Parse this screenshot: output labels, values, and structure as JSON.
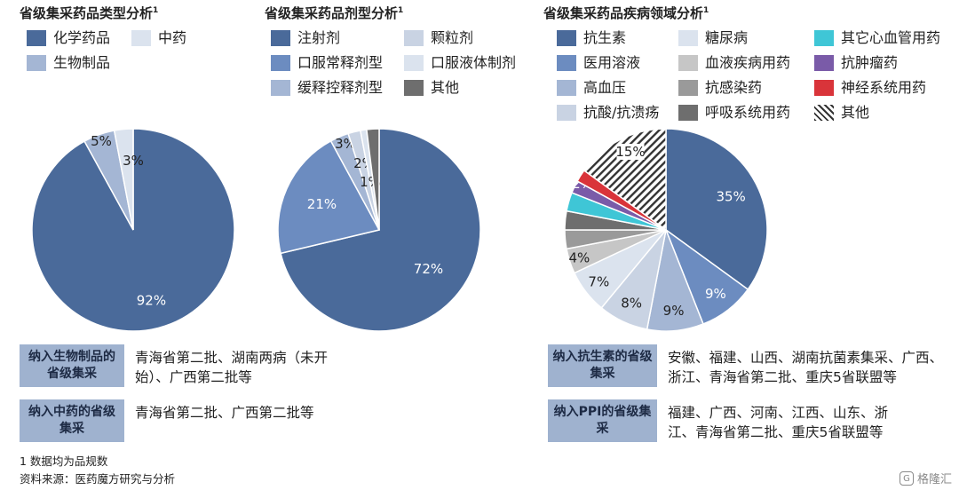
{
  "colors": {
    "c1": "#4a6a9a",
    "c2": "#6c8cc0",
    "c3": "#a4b6d4",
    "c4": "#c9d3e3",
    "c5": "#dbe3ee",
    "g1": "#c6c6c6",
    "g2": "#9a9a9a",
    "g3": "#6e6e6e",
    "teal": "#3fc6d6",
    "purple": "#7a5ba8",
    "red": "#d9343a"
  },
  "chart_data": [
    {
      "type": "pie",
      "title": "省级集采药品类型分析",
      "title_sup": "1",
      "legend_position": "top",
      "slices": [
        {
          "label": "化学药品",
          "value": 92,
          "display": "92%",
          "color": "#4a6a9a",
          "label_color": "#ffffff"
        },
        {
          "label": "生物制品",
          "value": 5,
          "display": "5%",
          "color": "#a4b6d4",
          "label_color": "#222222"
        },
        {
          "label": "中药",
          "value": 3,
          "display": "3%",
          "color": "#dbe3ee",
          "label_color": "#222222"
        }
      ],
      "legend": [
        "化学药品",
        "中药",
        "生物制品"
      ]
    },
    {
      "type": "pie",
      "title": "省级集采药品剂型分析",
      "title_sup": "1",
      "legend_position": "top",
      "slices": [
        {
          "label": "注射剂",
          "value": 72,
          "display": "72%",
          "color": "#4a6a9a",
          "label_color": "#ffffff"
        },
        {
          "label": "口服常释剂型",
          "value": 21,
          "display": "21%",
          "color": "#6c8cc0",
          "label_color": "#ffffff"
        },
        {
          "label": "缓释控释剂型",
          "value": 3,
          "display": "3%",
          "color": "#a4b6d4",
          "label_color": "#222222"
        },
        {
          "label": "颗粒剂",
          "value": 2,
          "display": "2%",
          "color": "#c9d3e3",
          "label_color": "#222222"
        },
        {
          "label": "口服液体制剂",
          "value": 1,
          "display": "1%",
          "color": "#dbe3ee",
          "label_color": "#222222"
        },
        {
          "label": "其他",
          "value": 2,
          "display": "2%",
          "color": "#6e6e6e",
          "label_color": "#ffffff"
        }
      ],
      "legend": [
        "注射剂",
        "颗粒剂",
        "口服常释剂型",
        "口服液体制剂",
        "缓释控释剂型",
        "其他"
      ]
    },
    {
      "type": "pie",
      "title": "省级集采药品疾病领域分析",
      "title_sup": "1",
      "legend_position": "top",
      "slices": [
        {
          "label": "抗生素",
          "value": 35,
          "display": "35%",
          "color": "#4a6a9a",
          "label_color": "#ffffff"
        },
        {
          "label": "医用溶液",
          "value": 9,
          "display": "9%",
          "color": "#6c8cc0",
          "label_color": "#ffffff"
        },
        {
          "label": "高血压",
          "value": 9,
          "display": "9%",
          "color": "#a4b6d4",
          "label_color": "#222222"
        },
        {
          "label": "抗酸/抗溃疡",
          "value": 8,
          "display": "8%",
          "color": "#c9d3e3",
          "label_color": "#222222"
        },
        {
          "label": "糖尿病",
          "value": 7,
          "display": "7%",
          "color": "#dbe3ee",
          "label_color": "#222222"
        },
        {
          "label": "血液疾病用药",
          "value": 4,
          "display": "4%",
          "color": "#c6c6c6",
          "label_color": "#222222"
        },
        {
          "label": "抗感染药",
          "value": 3,
          "display": "3%",
          "color": "#9a9a9a",
          "label_color": "#222222"
        },
        {
          "label": "呼吸系统用药",
          "value": 3,
          "display": "3%",
          "color": "#6e6e6e",
          "label_color": "#222222"
        },
        {
          "label": "其它心血管用药",
          "value": 3,
          "display": "3%",
          "color": "#3fc6d6",
          "label_color": "#222222"
        },
        {
          "label": "抗肿瘤药",
          "value": 2,
          "display": "2%",
          "color": "#7a5ba8",
          "label_color": "#ffffff"
        },
        {
          "label": "神经系统用药",
          "value": 2,
          "display": "2%",
          "color": "#d9343a",
          "label_color": "#ffffff"
        },
        {
          "label": "其他",
          "value": 15,
          "display": "15%",
          "color": "hatch",
          "label_color": "#222222"
        }
      ],
      "legend": [
        "抗生素",
        "糖尿病",
        "其它心血管用药",
        "医用溶液",
        "血液疾病用药",
        "抗肿瘤药",
        "高血压",
        "抗感染药",
        "神经系统用药",
        "抗酸/抗溃疡",
        "呼吸系统用药",
        "其他"
      ]
    }
  ],
  "notes": [
    {
      "label": "纳入生物制品的省级集采",
      "text": "青海省第二批、湖南两病（未开始）、广西第二批等"
    },
    {
      "label": "纳入中药的省级集采",
      "text": "青海省第二批、广西第二批等"
    },
    {
      "label": "纳入抗生素的省级集采",
      "text": "安徽、福建、山西、湖南抗菌素集采、广西、浙江、青海省第二批、重庆5省联盟等"
    },
    {
      "label": "纳入PPI的省级集采",
      "text": "福建、广西、河南、江西、山东、浙江、青海省第二批、重庆5省联盟等"
    }
  ],
  "footnotes": {
    "line1": "1 数据均为品规数",
    "line2": "资料来源：医药魔方研究与分析"
  },
  "watermark": {
    "text": "格隆汇",
    "icon": "G"
  }
}
